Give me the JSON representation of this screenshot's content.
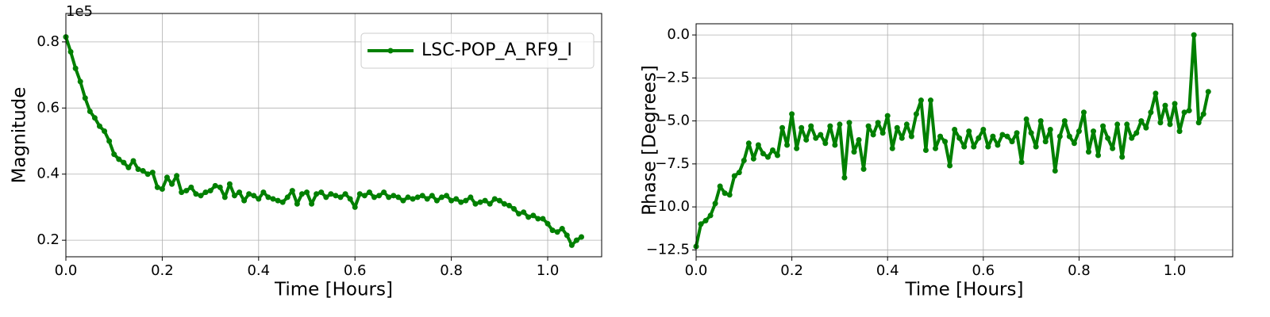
{
  "chart_data": [
    {
      "type": "line",
      "xlabel": "Time [Hours]",
      "ylabel": "Magnitude",
      "offset_label": "1e5",
      "grid": true,
      "legend": "upper right",
      "xlim": [
        0,
        1.112
      ],
      "ylim": [
        0.15,
        0.886
      ],
      "xticks": [
        {
          "value": 0,
          "label": "0.0"
        },
        0.2,
        0.4,
        0.6,
        0.8,
        {
          "value": 1,
          "label": "1.0"
        }
      ],
      "yticks": [
        0.2,
        0.4,
        0.6,
        0.8
      ],
      "x": [
        0,
        0.01,
        0.02,
        0.03,
        0.04,
        0.05,
        0.06,
        0.07,
        0.08,
        0.09,
        0.1,
        0.11,
        0.12,
        0.13,
        0.14,
        0.15,
        0.16,
        0.17,
        0.18,
        0.19,
        0.2,
        0.21,
        0.22,
        0.23,
        0.24,
        0.25,
        0.26,
        0.27,
        0.28,
        0.29,
        0.3,
        0.31,
        0.32,
        0.33,
        0.34,
        0.35,
        0.36,
        0.37,
        0.38,
        0.39,
        0.4,
        0.41,
        0.42,
        0.43,
        0.44,
        0.45,
        0.46,
        0.47,
        0.48,
        0.49,
        0.5,
        0.51,
        0.52,
        0.53,
        0.54,
        0.55,
        0.56,
        0.57,
        0.58,
        0.59,
        0.6,
        0.61,
        0.62,
        0.63,
        0.64,
        0.65,
        0.66,
        0.67,
        0.68,
        0.69,
        0.7,
        0.71,
        0.72,
        0.73,
        0.74,
        0.75,
        0.76,
        0.77,
        0.78,
        0.79,
        0.8,
        0.81,
        0.82,
        0.83,
        0.84,
        0.85,
        0.86,
        0.87,
        0.88,
        0.89,
        0.9,
        0.91,
        0.92,
        0.93,
        0.94,
        0.95,
        0.96,
        0.97,
        0.98,
        0.99,
        1,
        1.01,
        1.02,
        1.03,
        1.04,
        1.05,
        1.06,
        1.07
      ],
      "series": [
        {
          "name": "LSC-POP_A_RF9_I",
          "color": "#008000",
          "values": [
            0.815,
            0.77,
            0.72,
            0.68,
            0.63,
            0.59,
            0.57,
            0.545,
            0.53,
            0.5,
            0.46,
            0.445,
            0.435,
            0.42,
            0.44,
            0.415,
            0.41,
            0.4,
            0.405,
            0.36,
            0.355,
            0.39,
            0.37,
            0.395,
            0.345,
            0.35,
            0.36,
            0.34,
            0.335,
            0.345,
            0.35,
            0.365,
            0.36,
            0.33,
            0.37,
            0.335,
            0.345,
            0.32,
            0.34,
            0.335,
            0.325,
            0.345,
            0.33,
            0.325,
            0.32,
            0.315,
            0.33,
            0.35,
            0.31,
            0.34,
            0.345,
            0.31,
            0.34,
            0.345,
            0.33,
            0.34,
            0.335,
            0.33,
            0.34,
            0.325,
            0.3,
            0.34,
            0.335,
            0.345,
            0.33,
            0.335,
            0.345,
            0.33,
            0.335,
            0.33,
            0.32,
            0.33,
            0.325,
            0.33,
            0.335,
            0.325,
            0.335,
            0.32,
            0.33,
            0.335,
            0.32,
            0.325,
            0.315,
            0.32,
            0.33,
            0.31,
            0.315,
            0.32,
            0.31,
            0.325,
            0.32,
            0.31,
            0.305,
            0.295,
            0.28,
            0.285,
            0.27,
            0.275,
            0.265,
            0.265,
            0.25,
            0.23,
            0.225,
            0.235,
            0.215,
            0.185,
            0.2,
            0.21
          ]
        }
      ]
    },
    {
      "type": "line",
      "xlabel": "Time [Hours]",
      "ylabel": "Phase [Degrees]",
      "grid": true,
      "xlim": [
        0,
        1.121
      ],
      "ylim": [
        -12.9,
        0.65
      ],
      "xticks": [
        {
          "value": 0,
          "label": "0.0"
        },
        0.2,
        0.4,
        0.6,
        0.8,
        {
          "value": 1,
          "label": "1.0"
        }
      ],
      "yticks": [
        {
          "value": -12.5,
          "label": "−12.5"
        },
        {
          "value": -10,
          "label": "−10.0"
        },
        {
          "value": -7.5,
          "label": "−7.5"
        },
        {
          "value": -5,
          "label": "−5.0"
        },
        {
          "value": -2.5,
          "label": "−2.5"
        },
        {
          "value": 0,
          "label": "0.0"
        }
      ],
      "x": [
        0,
        0.01,
        0.02,
        0.03,
        0.04,
        0.05,
        0.06,
        0.07,
        0.08,
        0.09,
        0.1,
        0.11,
        0.12,
        0.13,
        0.14,
        0.15,
        0.16,
        0.17,
        0.18,
        0.19,
        0.2,
        0.21,
        0.22,
        0.23,
        0.24,
        0.25,
        0.26,
        0.27,
        0.28,
        0.29,
        0.3,
        0.31,
        0.32,
        0.33,
        0.34,
        0.35,
        0.36,
        0.37,
        0.38,
        0.39,
        0.4,
        0.41,
        0.42,
        0.43,
        0.44,
        0.45,
        0.46,
        0.47,
        0.48,
        0.49,
        0.5,
        0.51,
        0.52,
        0.53,
        0.54,
        0.55,
        0.56,
        0.57,
        0.58,
        0.59,
        0.6,
        0.61,
        0.62,
        0.63,
        0.64,
        0.65,
        0.66,
        0.67,
        0.68,
        0.69,
        0.7,
        0.71,
        0.72,
        0.73,
        0.74,
        0.75,
        0.76,
        0.77,
        0.78,
        0.79,
        0.8,
        0.81,
        0.82,
        0.83,
        0.84,
        0.85,
        0.86,
        0.87,
        0.88,
        0.89,
        0.9,
        0.91,
        0.92,
        0.93,
        0.94,
        0.95,
        0.96,
        0.97,
        0.98,
        0.99,
        1,
        1.01,
        1.02,
        1.03,
        1.04,
        1.05,
        1.06,
        1.07
      ],
      "series": [
        {
          "color": "#008000",
          "values": [
            -12.3,
            -11.0,
            -10.8,
            -10.5,
            -9.8,
            -8.8,
            -9.2,
            -9.3,
            -8.2,
            -8.0,
            -7.3,
            -6.3,
            -7.2,
            -6.4,
            -6.9,
            -7.1,
            -6.7,
            -7.0,
            -5.4,
            -6.4,
            -4.6,
            -6.6,
            -5.4,
            -6.1,
            -5.3,
            -6.0,
            -5.8,
            -6.3,
            -5.3,
            -6.4,
            -5.2,
            -8.3,
            -5.1,
            -6.8,
            -6.1,
            -7.8,
            -5.3,
            -5.8,
            -5.1,
            -5.7,
            -4.7,
            -6.6,
            -5.4,
            -6.0,
            -5.2,
            -5.9,
            -4.6,
            -3.8,
            -6.7,
            -3.8,
            -6.6,
            -5.9,
            -6.2,
            -7.6,
            -5.5,
            -6.0,
            -6.5,
            -5.6,
            -6.5,
            -6.0,
            -5.5,
            -6.5,
            -5.9,
            -6.4,
            -5.8,
            -5.9,
            -6.2,
            -5.7,
            -7.4,
            -4.9,
            -5.7,
            -6.5,
            -5.0,
            -6.2,
            -5.5,
            -7.9,
            -5.9,
            -5.0,
            -5.9,
            -6.3,
            -5.6,
            -4.5,
            -6.8,
            -5.6,
            -7.0,
            -5.3,
            -6.0,
            -6.6,
            -5.2,
            -7.1,
            -5.2,
            -6.0,
            -5.7,
            -5.0,
            -5.4,
            -4.5,
            -3.4,
            -5.1,
            -4.1,
            -5.2,
            -4.0,
            -5.6,
            -4.5,
            -4.4,
            0.0,
            -5.1,
            -4.6,
            -3.3
          ]
        }
      ]
    }
  ]
}
